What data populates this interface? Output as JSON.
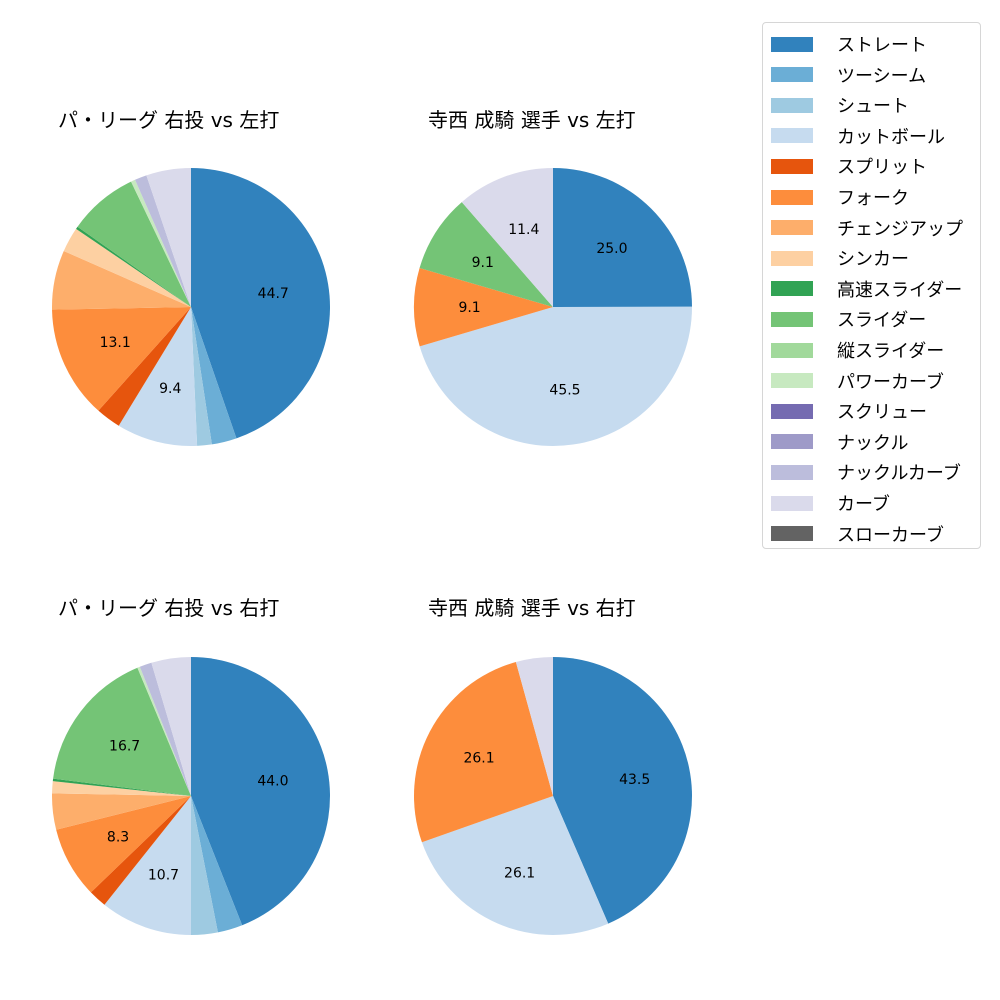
{
  "chart_data": [
    {
      "type": "pie",
      "title": "パ・リーグ 右投 vs 左打",
      "categories": [
        "ストレート",
        "ツーシーム",
        "シュート",
        "カットボール",
        "スプリット",
        "フォーク",
        "チェンジアップ",
        "シンカー",
        "高速スライダー",
        "スライダー",
        "パワーカーブ",
        "ナックルカーブ",
        "カーブ"
      ],
      "values": [
        44.7,
        2.9,
        1.7,
        9.4,
        2.9,
        13.1,
        6.9,
        2.9,
        0.3,
        8.1,
        0.5,
        1.4,
        5.2
      ],
      "labels_shown": [
        "44.7",
        "",
        "",
        "9.4",
        "",
        "13.1",
        "",
        "",
        "",
        "",
        "",
        "",
        ""
      ]
    },
    {
      "type": "pie",
      "title": "寺西 成騎 選手 vs 左打",
      "categories": [
        "ストレート",
        "カットボール",
        "フォーク",
        "スライダー",
        "カーブ"
      ],
      "values": [
        25.0,
        45.5,
        9.1,
        9.1,
        11.4
      ],
      "labels_shown": [
        "25.0",
        "45.5",
        "9.1",
        "9.1",
        "11.4"
      ]
    },
    {
      "type": "pie",
      "title": "パ・リーグ 右投 vs 右打",
      "categories": [
        "ストレート",
        "ツーシーム",
        "シュート",
        "カットボール",
        "スプリット",
        "フォーク",
        "チェンジアップ",
        "シンカー",
        "高速スライダー",
        "スライダー",
        "パワーカーブ",
        "ナックルカーブ",
        "カーブ"
      ],
      "values": [
        44.0,
        2.9,
        3.1,
        10.7,
        2.1,
        8.3,
        4.2,
        1.4,
        0.3,
        16.7,
        0.3,
        1.4,
        4.6
      ],
      "labels_shown": [
        "44.0",
        "",
        "",
        "10.7",
        "",
        "8.3",
        "",
        "",
        "",
        "16.7",
        "",
        "",
        ""
      ]
    },
    {
      "type": "pie",
      "title": "寺西 成騎 選手 vs 右打",
      "categories": [
        "ストレート",
        "カットボール",
        "フォーク",
        "カーブ"
      ],
      "values": [
        43.5,
        26.1,
        26.1,
        4.3
      ],
      "labels_shown": [
        "43.5",
        "26.1",
        "26.1",
        ""
      ]
    }
  ],
  "legend": {
    "items": [
      {
        "label": "ストレート",
        "color": "#3182bd"
      },
      {
        "label": "ツーシーム",
        "color": "#6baed6"
      },
      {
        "label": "シュート",
        "color": "#9ecae1"
      },
      {
        "label": "カットボール",
        "color": "#c6dbef"
      },
      {
        "label": "スプリット",
        "color": "#e6550d"
      },
      {
        "label": "フォーク",
        "color": "#fd8d3c"
      },
      {
        "label": "チェンジアップ",
        "color": "#fdae6b"
      },
      {
        "label": "シンカー",
        "color": "#fdd0a2"
      },
      {
        "label": "高速スライダー",
        "color": "#31a354"
      },
      {
        "label": "スライダー",
        "color": "#74c476"
      },
      {
        "label": "縦スライダー",
        "color": "#a1d99b"
      },
      {
        "label": "パワーカーブ",
        "color": "#c7e9c0"
      },
      {
        "label": "スクリュー",
        "color": "#756bb1"
      },
      {
        "label": "ナックル",
        "color": "#9e9ac8"
      },
      {
        "label": "ナックルカーブ",
        "color": "#bcbddc"
      },
      {
        "label": "カーブ",
        "color": "#dadaeb"
      },
      {
        "label": "スローカーブ",
        "color": "#636363"
      }
    ]
  },
  "titles": {
    "top_left": "パ・リーグ 右投 vs 左打",
    "top_right": "寺西 成騎 選手 vs 左打",
    "bottom_left": "パ・リーグ 右投 vs 右打",
    "bottom_right": "寺西 成騎 選手 vs 右打"
  }
}
